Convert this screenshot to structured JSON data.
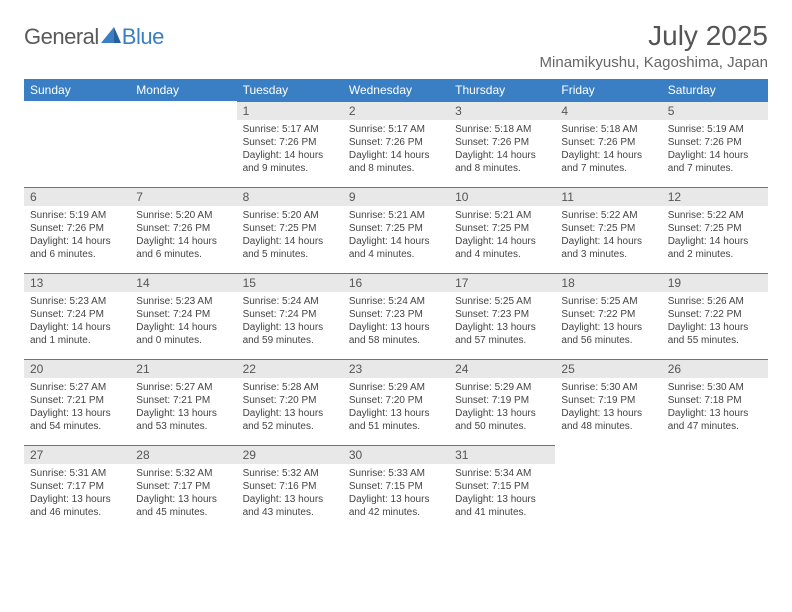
{
  "brand": {
    "general": "General",
    "blue": "Blue"
  },
  "title": "July 2025",
  "location": "Minamikyushu, Kagoshima, Japan",
  "colors": {
    "accent": "#3a7fc4",
    "header_text": "#555555",
    "body_text": "#444444",
    "daynum_bg": "#e8e8e8",
    "background": "#ffffff"
  },
  "weekday_labels": [
    "Sunday",
    "Monday",
    "Tuesday",
    "Wednesday",
    "Thursday",
    "Friday",
    "Saturday"
  ],
  "weeks": [
    [
      null,
      null,
      {
        "n": "1",
        "sr": "5:17 AM",
        "ss": "7:26 PM",
        "dl": "14 hours and 9 minutes."
      },
      {
        "n": "2",
        "sr": "5:17 AM",
        "ss": "7:26 PM",
        "dl": "14 hours and 8 minutes."
      },
      {
        "n": "3",
        "sr": "5:18 AM",
        "ss": "7:26 PM",
        "dl": "14 hours and 8 minutes."
      },
      {
        "n": "4",
        "sr": "5:18 AM",
        "ss": "7:26 PM",
        "dl": "14 hours and 7 minutes."
      },
      {
        "n": "5",
        "sr": "5:19 AM",
        "ss": "7:26 PM",
        "dl": "14 hours and 7 minutes."
      }
    ],
    [
      {
        "n": "6",
        "sr": "5:19 AM",
        "ss": "7:26 PM",
        "dl": "14 hours and 6 minutes."
      },
      {
        "n": "7",
        "sr": "5:20 AM",
        "ss": "7:26 PM",
        "dl": "14 hours and 6 minutes."
      },
      {
        "n": "8",
        "sr": "5:20 AM",
        "ss": "7:25 PM",
        "dl": "14 hours and 5 minutes."
      },
      {
        "n": "9",
        "sr": "5:21 AM",
        "ss": "7:25 PM",
        "dl": "14 hours and 4 minutes."
      },
      {
        "n": "10",
        "sr": "5:21 AM",
        "ss": "7:25 PM",
        "dl": "14 hours and 4 minutes."
      },
      {
        "n": "11",
        "sr": "5:22 AM",
        "ss": "7:25 PM",
        "dl": "14 hours and 3 minutes."
      },
      {
        "n": "12",
        "sr": "5:22 AM",
        "ss": "7:25 PM",
        "dl": "14 hours and 2 minutes."
      }
    ],
    [
      {
        "n": "13",
        "sr": "5:23 AM",
        "ss": "7:24 PM",
        "dl": "14 hours and 1 minute."
      },
      {
        "n": "14",
        "sr": "5:23 AM",
        "ss": "7:24 PM",
        "dl": "14 hours and 0 minutes."
      },
      {
        "n": "15",
        "sr": "5:24 AM",
        "ss": "7:24 PM",
        "dl": "13 hours and 59 minutes."
      },
      {
        "n": "16",
        "sr": "5:24 AM",
        "ss": "7:23 PM",
        "dl": "13 hours and 58 minutes."
      },
      {
        "n": "17",
        "sr": "5:25 AM",
        "ss": "7:23 PM",
        "dl": "13 hours and 57 minutes."
      },
      {
        "n": "18",
        "sr": "5:25 AM",
        "ss": "7:22 PM",
        "dl": "13 hours and 56 minutes."
      },
      {
        "n": "19",
        "sr": "5:26 AM",
        "ss": "7:22 PM",
        "dl": "13 hours and 55 minutes."
      }
    ],
    [
      {
        "n": "20",
        "sr": "5:27 AM",
        "ss": "7:21 PM",
        "dl": "13 hours and 54 minutes."
      },
      {
        "n": "21",
        "sr": "5:27 AM",
        "ss": "7:21 PM",
        "dl": "13 hours and 53 minutes."
      },
      {
        "n": "22",
        "sr": "5:28 AM",
        "ss": "7:20 PM",
        "dl": "13 hours and 52 minutes."
      },
      {
        "n": "23",
        "sr": "5:29 AM",
        "ss": "7:20 PM",
        "dl": "13 hours and 51 minutes."
      },
      {
        "n": "24",
        "sr": "5:29 AM",
        "ss": "7:19 PM",
        "dl": "13 hours and 50 minutes."
      },
      {
        "n": "25",
        "sr": "5:30 AM",
        "ss": "7:19 PM",
        "dl": "13 hours and 48 minutes."
      },
      {
        "n": "26",
        "sr": "5:30 AM",
        "ss": "7:18 PM",
        "dl": "13 hours and 47 minutes."
      }
    ],
    [
      {
        "n": "27",
        "sr": "5:31 AM",
        "ss": "7:17 PM",
        "dl": "13 hours and 46 minutes."
      },
      {
        "n": "28",
        "sr": "5:32 AM",
        "ss": "7:17 PM",
        "dl": "13 hours and 45 minutes."
      },
      {
        "n": "29",
        "sr": "5:32 AM",
        "ss": "7:16 PM",
        "dl": "13 hours and 43 minutes."
      },
      {
        "n": "30",
        "sr": "5:33 AM",
        "ss": "7:15 PM",
        "dl": "13 hours and 42 minutes."
      },
      {
        "n": "31",
        "sr": "5:34 AM",
        "ss": "7:15 PM",
        "dl": "13 hours and 41 minutes."
      },
      null,
      null
    ]
  ],
  "labels": {
    "sunrise": "Sunrise:",
    "sunset": "Sunset:",
    "daylight": "Daylight:"
  }
}
